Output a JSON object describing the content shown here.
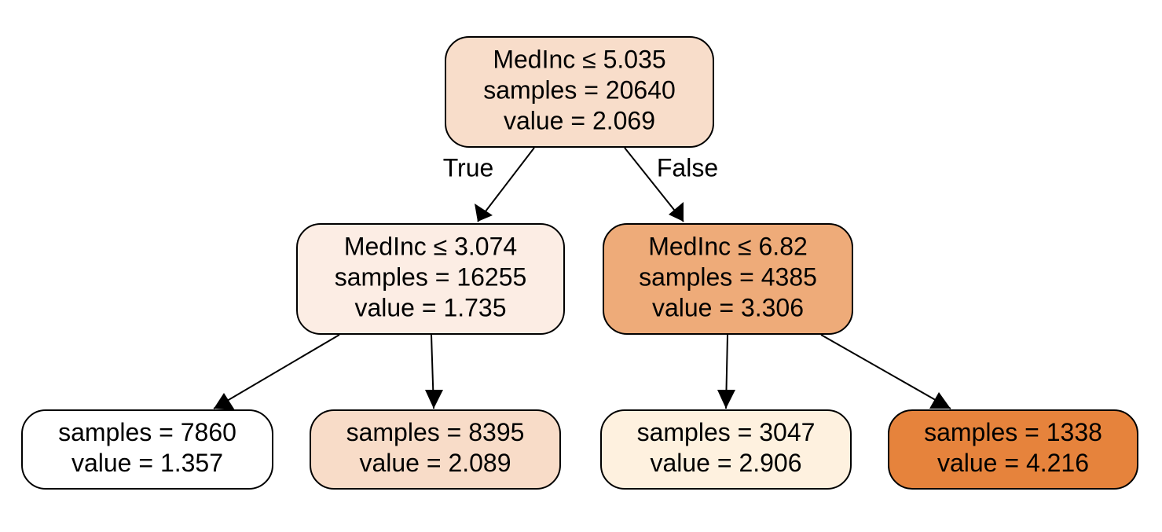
{
  "nodes": [
    {
      "lines": [
        "MedInc ≤ 5.035",
        "samples = 20640",
        "value = 2.069"
      ],
      "color": "#f8ddca"
    },
    {
      "lines": [
        "MedInc ≤ 3.074",
        "samples = 16255",
        "value = 1.735"
      ],
      "color": "#fcede4"
    },
    {
      "lines": [
        "MedInc ≤ 6.82",
        "samples = 4385",
        "value = 3.306"
      ],
      "color": "#eeab79"
    },
    {
      "lines": [
        "samples = 7860",
        "value = 1.357"
      ],
      "color": "#ffffff"
    },
    {
      "lines": [
        "samples = 8395",
        "value = 2.089"
      ],
      "color": "#f8dcc8"
    },
    {
      "lines": [
        "samples = 3047",
        "value = 2.906"
      ],
      "color": "#fef1df"
    },
    {
      "lines": [
        "samples = 1338",
        "value = 4.216"
      ],
      "color": "#e6833c"
    }
  ],
  "edge_labels": [
    "True",
    "False"
  ]
}
